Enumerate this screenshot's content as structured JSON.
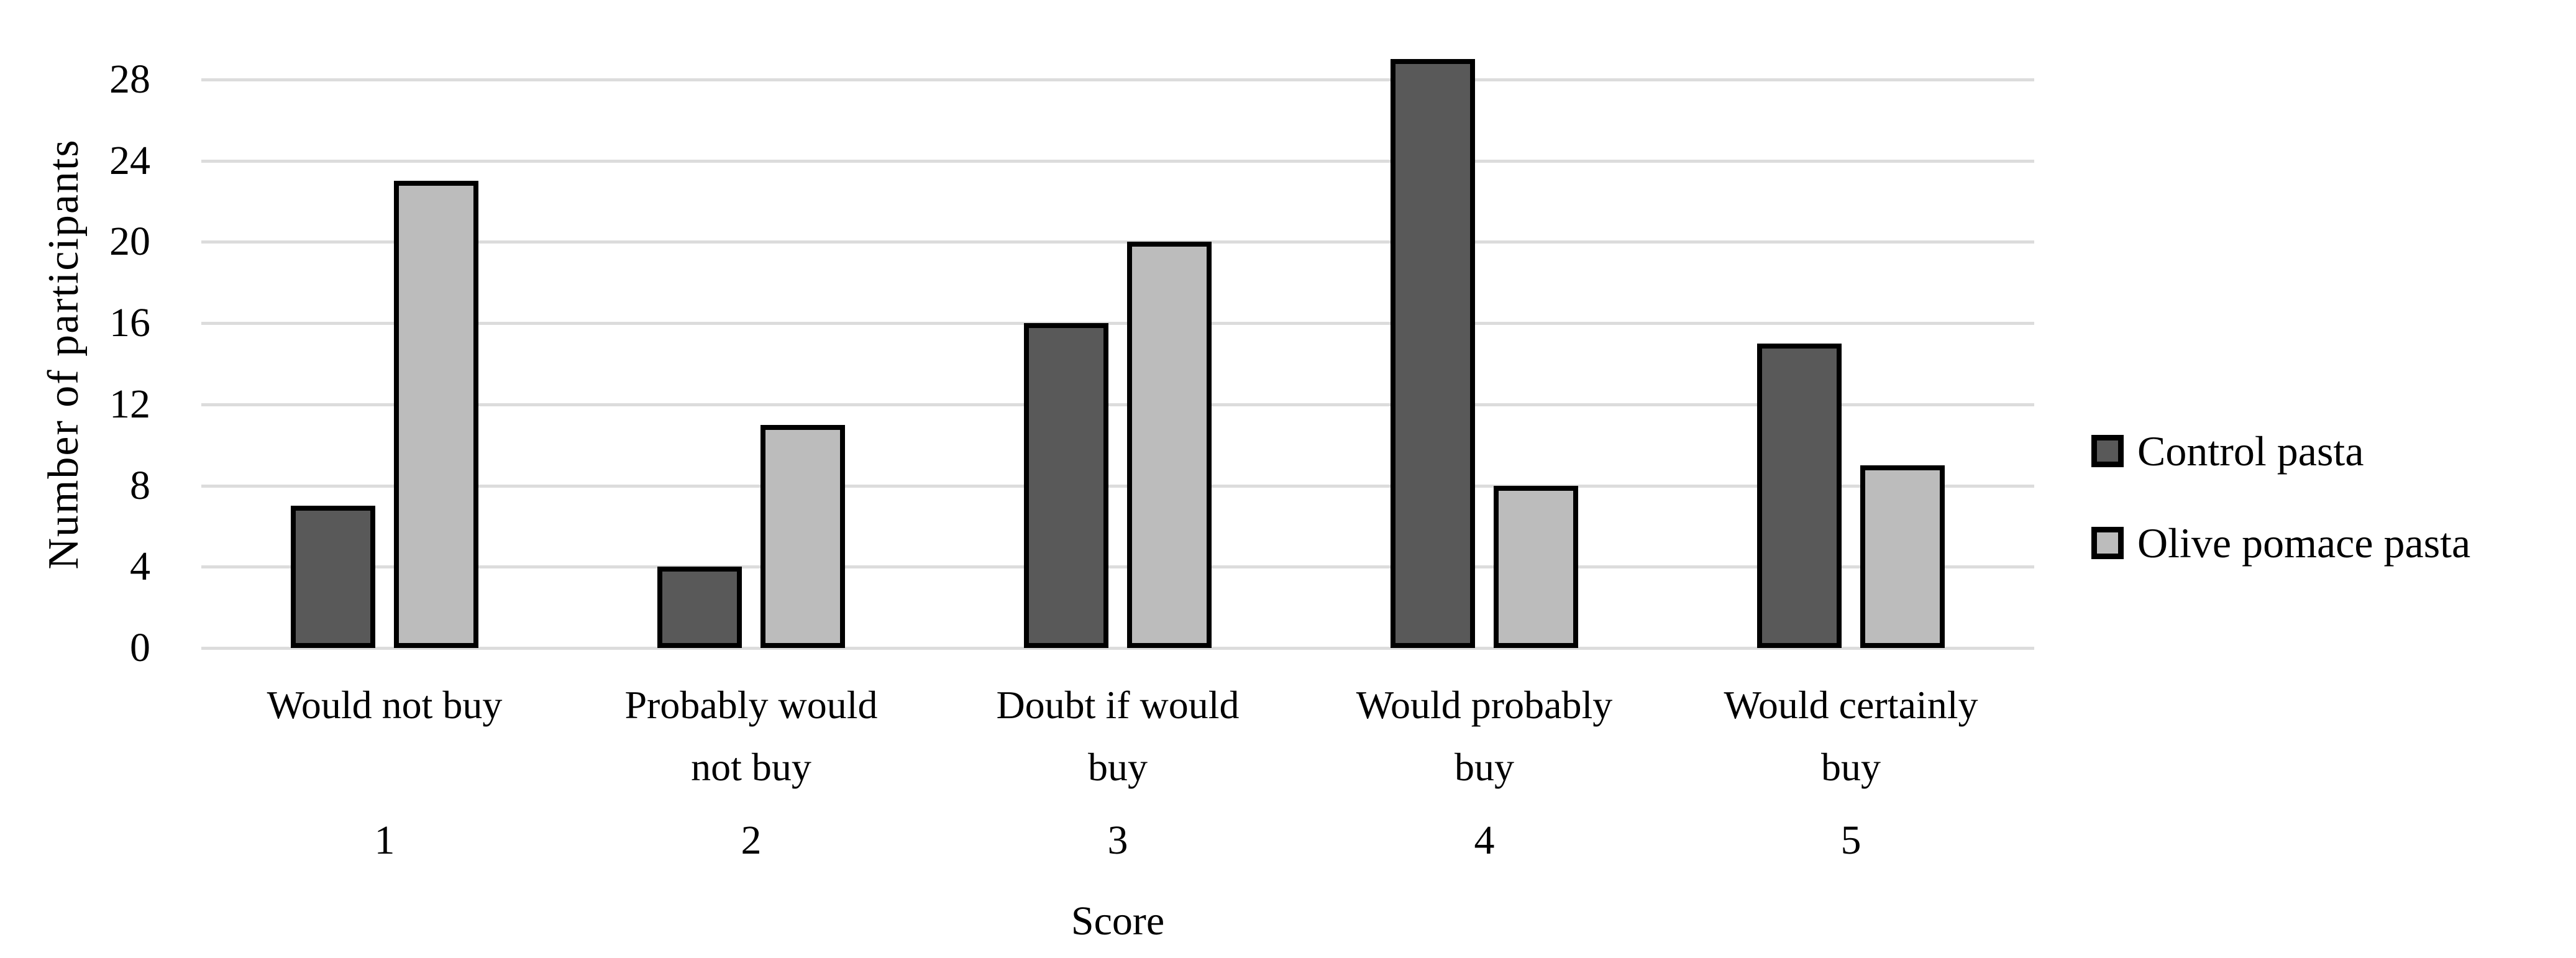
{
  "figure": {
    "background": "#ffffff",
    "text_color": "#000000",
    "gridline_color": "#dcdcdc",
    "bar_border_color": "#000000"
  },
  "chart_data": {
    "type": "bar",
    "title": "",
    "ylabel": "Number of participants",
    "xlabel": "Score",
    "ylim": [
      0,
      28
    ],
    "ytick_step": 4,
    "yticks": [
      0,
      4,
      8,
      12,
      16,
      20,
      24,
      28
    ],
    "grid": true,
    "legend_position": "right",
    "categories": [
      "Would not buy",
      "Probably would not buy",
      "Doubt if would buy",
      "Would probably buy",
      "Would certainly buy"
    ],
    "category_lines": [
      [
        "Would not buy"
      ],
      [
        "Probably would",
        "not buy"
      ],
      [
        "Doubt if would",
        "buy"
      ],
      [
        "Would probably",
        "buy"
      ],
      [
        "Would certainly",
        "buy"
      ]
    ],
    "category_scores": [
      "1",
      "2",
      "3",
      "4",
      "5"
    ],
    "series": [
      {
        "name": "Control pasta",
        "color": "#595959",
        "values": [
          7,
          4,
          16,
          29,
          15
        ]
      },
      {
        "name": "Olive pomace pasta",
        "color": "#bcbcbc",
        "values": [
          23,
          11,
          20,
          8,
          9
        ]
      }
    ]
  }
}
